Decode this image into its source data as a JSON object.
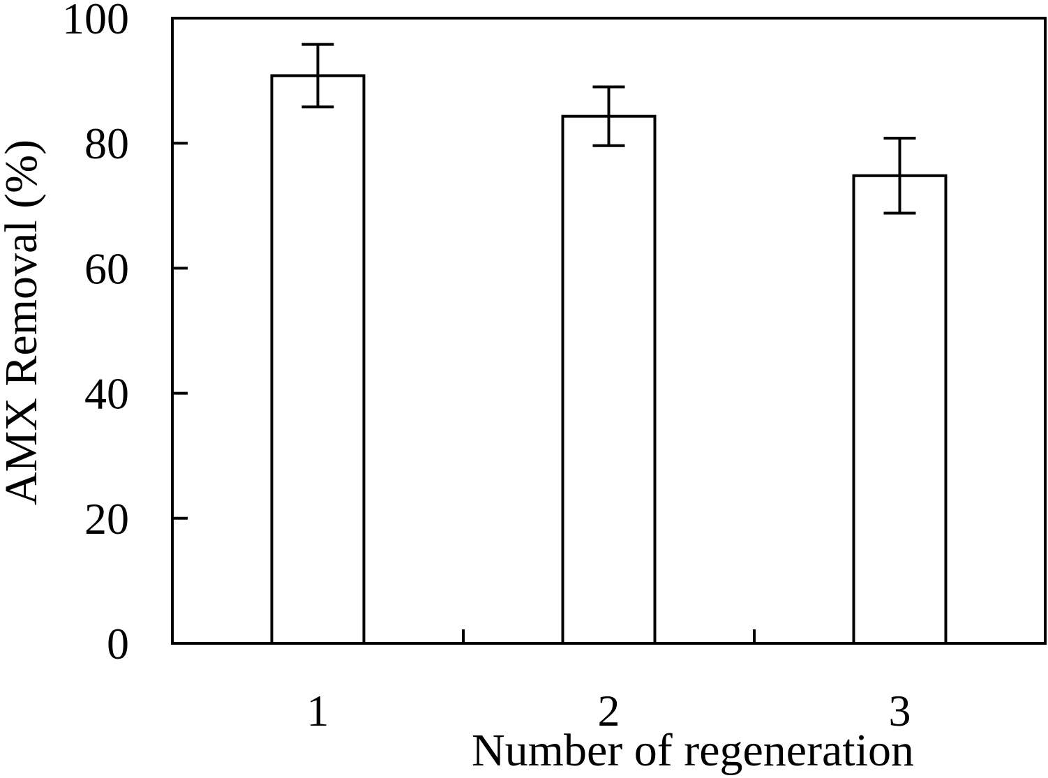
{
  "chart_data": {
    "type": "bar",
    "title": "",
    "xlabel": "Number of regeneration",
    "ylabel": "AMX Removal (%)",
    "categories": [
      "1",
      "2",
      "3"
    ],
    "values": [
      90.8,
      84.3,
      74.8
    ],
    "errors": [
      5.0,
      4.7,
      6.0
    ],
    "ylim": [
      0,
      100
    ],
    "yticks": [
      0,
      20,
      40,
      60,
      80,
      100
    ],
    "grid": false,
    "legend": "none",
    "bar_fill": "#ffffff",
    "stroke_color": "#000000"
  }
}
